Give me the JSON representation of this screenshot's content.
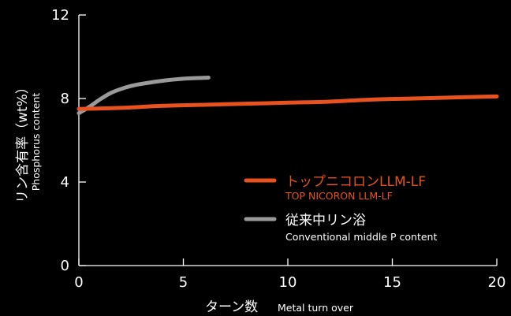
{
  "colors": {
    "background": "#000000",
    "axis": "#ffffff",
    "top_nicoron": "#e8521e",
    "conventional": "#9a9a9a",
    "text": "#ffffff"
  },
  "chart_data": {
    "type": "line",
    "xlabel_main": "ターン数",
    "xlabel_sub": "Metal turn over",
    "ylabel_main": "リン含有率（wt%）",
    "ylabel_sub": "Phosphorus content",
    "xlim": [
      0,
      20
    ],
    "ylim": [
      0,
      12
    ],
    "x_ticks": [
      0,
      5,
      10,
      15,
      20
    ],
    "y_ticks": [
      0,
      4,
      8,
      12
    ],
    "x_tick_labels": [
      "0",
      "5",
      "10",
      "15",
      "20"
    ],
    "y_tick_labels": [
      "0",
      "4",
      "8",
      "12"
    ],
    "grid": false,
    "legend_position": "center-right",
    "series": [
      {
        "name": "トップニコロンLLM-LF",
        "name_sub": "TOP NICORON LLM-LF",
        "color": "#e8521e",
        "x": [
          0,
          2,
          4,
          6,
          8,
          10,
          12,
          14,
          16,
          18,
          20
        ],
        "y": [
          7.5,
          7.55,
          7.65,
          7.7,
          7.75,
          7.8,
          7.85,
          7.95,
          8.0,
          8.05,
          8.1
        ]
      },
      {
        "name": "従来中リン浴",
        "name_sub": "Conventional middle P content",
        "color": "#9a9a9a",
        "x": [
          0,
          0.5,
          1,
          1.5,
          2,
          2.5,
          3,
          4,
          5,
          6.2
        ],
        "y": [
          7.3,
          7.6,
          7.95,
          8.25,
          8.45,
          8.6,
          8.7,
          8.85,
          8.95,
          9.0
        ]
      }
    ]
  }
}
